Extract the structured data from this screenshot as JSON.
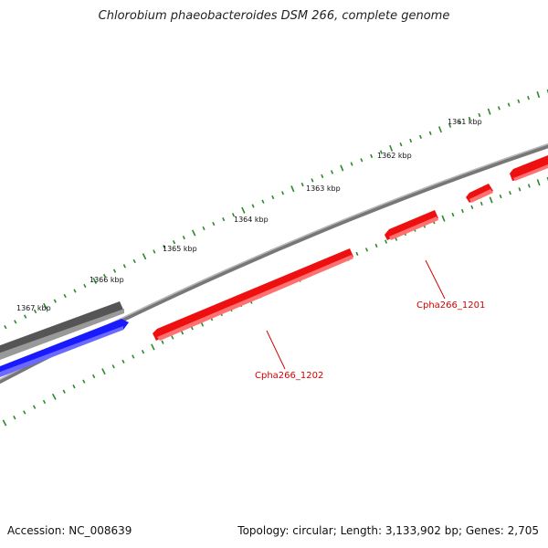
{
  "title": "Chlorobium phaeobacteroides DSM 266, complete genome",
  "footer": {
    "accession_label": "Accession:",
    "accession": "NC_008639",
    "topology_label": "Topology:",
    "topology": "circular",
    "length_label": "Length:",
    "length": "3,133,902 bp",
    "genes_label": "Genes:",
    "genes": "2,705"
  },
  "scale": {
    "unit": "kbp",
    "labels": [
      "1361 kbp",
      "1362 kbp",
      "1363 kbp",
      "1364 kbp",
      "1365 kbp",
      "1366 kbp",
      "1367 kbp"
    ],
    "tick_color": "#2a8a2a"
  },
  "genes": [
    {
      "name": "Cpha266_1201",
      "strand": "reverse",
      "color": "#ff1a1a"
    },
    {
      "name": "Cpha266_1202",
      "strand": "reverse",
      "color": "#ff1a1a"
    }
  ],
  "colors": {
    "backbone": "#888888",
    "forward_gene": "#1a1aff",
    "other_feature": "#666666",
    "gene_label": "#d40000"
  }
}
